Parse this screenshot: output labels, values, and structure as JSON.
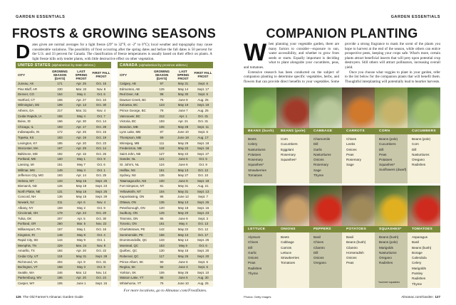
{
  "left": {
    "kicker": "GARDEN ESSENTIALS",
    "title": "FROSTS & GROWING SEASONS",
    "drop_cap": "D",
    "intro": "ates given are normal averages for a light freeze (29° to 32°F, or -2° to 0°C); local weather and topography may cause considerable variations. The possibility of frost occurring after the spring dates and before the fall dates is 50 percent for the U.S. and 33 percent for Canada. The classification of freeze temperatures is usually based on their effect on plants. A light freeze kills only tender plants, with little destructive effect on other vegetation.",
    "headers": [
      "CITY",
      "GROWING SEASON (DAYS)",
      "LAST SPRING FROST",
      "FIRST FALL FROST"
    ],
    "us": {
      "title": "UNITED STATES",
      "subtitle": "(alphabetical by state abbrev.)",
      "rows": [
        [
          "Juneau, AK",
          "171",
          "Apr. 26",
          "Oct. 15"
        ],
        [
          "Pine Bluff, AR",
          "230",
          "Mar. 22",
          "Nov. 8"
        ],
        [
          "Denver, CO",
          "154",
          "May 4",
          "Oct. 6"
        ],
        [
          "Hartford, CT",
          "165",
          "Apr. 27",
          "Oct. 10"
        ],
        [
          "Wilmington, DE",
          "199",
          "Apr. 13",
          "Oct. 30"
        ],
        [
          "Athens, GA",
          "217",
          "Mar. 31",
          "Nov. 4"
        ],
        [
          "Cedar Rapids, IA",
          "155",
          "May 4",
          "Oct. 7"
        ],
        [
          "Boise, ID",
          "166",
          "Apr. 30",
          "Oct. 14"
        ],
        [
          "Chicago, IL",
          "193",
          "Apr. 17",
          "Oct. 28"
        ],
        [
          "Indianapolis, IN",
          "172",
          "Apr. 26",
          "Oct. 16"
        ],
        [
          "Topeka, KS",
          "183",
          "Apr. 19",
          "Oct. 19"
        ],
        [
          "Lexington, KY",
          "185",
          "Apr. 20",
          "Oct. 23"
        ],
        [
          "Worcester, MA",
          "167",
          "Apr. 29",
          "Oct. 14"
        ],
        [
          "Baltimore, MD",
          "192",
          "Apr. 16",
          "Oct. 26"
        ],
        [
          "Portland, ME",
          "160",
          "May 1",
          "Oct. 9"
        ],
        [
          "Lansing, MI",
          "151",
          "May 7",
          "Oct. 6"
        ],
        [
          "Willmar, MN",
          "149",
          "May 4",
          "Oct. 1"
        ],
        [
          "Jefferson City, MO",
          "193",
          "Apr. 14",
          "Oct. 25"
        ],
        [
          "Helena, MT",
          "133",
          "May 15",
          "Sept. 25"
        ],
        [
          "Bismarck, ND",
          "126",
          "May 19",
          "Sept. 23"
        ],
        [
          "North Platte, NE",
          "131",
          "May 16",
          "Sept. 25"
        ],
        [
          "Concord, NH",
          "136",
          "May 15",
          "Sept. 29"
        ],
        [
          "Newark, NJ",
          "211",
          "Apr. 6",
          "Nov. 4"
        ],
        [
          "Albany, NY",
          "159",
          "May 2",
          "Oct. 9"
        ],
        [
          "Cincinnati, OH",
          "179",
          "Apr. 23",
          "Oct. 20"
        ],
        [
          "Tulsa, OK",
          "207",
          "Apr. 5",
          "Oct. 30"
        ],
        [
          "Portland, OR",
          "260",
          "Mar. 6",
          "Nov. 22"
        ],
        [
          "Williamsport, PA",
          "167",
          "May 1",
          "Oct. 16"
        ],
        [
          "Kingston, RI",
          "148",
          "May 8",
          "Oct. 4"
        ],
        [
          "Rapid City, SD",
          "144",
          "May 9",
          "Oct. 1"
        ],
        [
          "Memphis, TN",
          "229",
          "Mar. 24",
          "Nov. 9"
        ],
        [
          "Amarillo, TX",
          "184",
          "Apr. 20",
          "Oct. 22"
        ],
        [
          "Cedar City, UT",
          "119",
          "May 31",
          "Sept. 28"
        ],
        [
          "Richmond, VA",
          "204",
          "Apr. 9",
          "Oct. 31"
        ],
        [
          "Burlington, VT",
          "158",
          "May 3",
          "Oct. 9"
        ],
        [
          "Seattle, WA",
          "246",
          "Mar. 12",
          "Nov. 14"
        ],
        [
          "Parkersburg, WV",
          "186",
          "Apr. 20",
          "Oct. 24"
        ],
        [
          "Casper, WY",
          "105",
          "June 1",
          "Sept. 15"
        ]
      ]
    },
    "canada": {
      "title": "CANADA",
      "subtitle": "(alphabetical by province abbrev.)",
      "rows": [
        [
          "Calgary, AB",
          "97",
          "May 31",
          "Sept. 6"
        ],
        [
          "Edmonton, AB",
          "125",
          "May 14",
          "Sept. 17"
        ],
        [
          "Red Deer, AB",
          "98",
          "May 30",
          "Sept. 6"
        ],
        [
          "Dawson Creek, BC",
          "76",
          "June 9",
          "Aug. 25"
        ],
        [
          "Kelowna, BC",
          "123",
          "May 19",
          "Sept. 19"
        ],
        [
          "Prince George, BC",
          "78",
          "June 7",
          "Aug. 25"
        ],
        [
          "Vancouver, BC",
          "212",
          "Apr. 1",
          "Oct. 31"
        ],
        [
          "Victoria, BC",
          "193",
          "Apr. 21",
          "Oct. 31"
        ],
        [
          "Brandon, MB",
          "105",
          "May 28",
          "Sept. 11"
        ],
        [
          "Lynn Lake, MB",
          "87",
          "June 10",
          "Sept. 6"
        ],
        [
          "Thompson, MB",
          "59",
          "June 18",
          "Aug. 17"
        ],
        [
          "Winnipeg, MB",
          "111",
          "May 29",
          "Sept. 18"
        ],
        [
          "Fredericton, NB",
          "118",
          "May 22",
          "Sept. 18"
        ],
        [
          "Saint John, NB",
          "127",
          "May 22",
          "Sept. 27"
        ],
        [
          "Gander, NL",
          "121",
          "June 6",
          "Oct. 6"
        ],
        [
          "St. John's, NL",
          "124",
          "June 6",
          "Oct. 9"
        ],
        [
          "Halifax, NS",
          "151",
          "May 13",
          "Oct. 12"
        ],
        [
          "Sydney, NS",
          "135",
          "May 27",
          "Oct. 10"
        ],
        [
          "Tatamagouche, NS",
          "100",
          "June 9",
          "Sept. 18"
        ],
        [
          "Fort Simpson, NT",
          "81",
          "May 31",
          "Aug. 21"
        ],
        [
          "Yellowknife, NT",
          "104",
          "May 31",
          "Sept. 13"
        ],
        [
          "Kapuskasing, ON",
          "86",
          "June 12",
          "Sept. 7"
        ],
        [
          "Ottawa, ON",
          "135",
          "May 13",
          "Sept. 26"
        ],
        [
          "Peterborough, ON",
          "120",
          "May 18",
          "Sept. 16"
        ],
        [
          "Sudbury, ON",
          "125",
          "May 20",
          "Sept. 23"
        ],
        [
          "Timmins, ON",
          "85",
          "June 9",
          "Sept. 3"
        ],
        [
          "Toronto, ON",
          "161",
          "May 4",
          "Oct. 13"
        ],
        [
          "Charlottetown, PE",
          "142",
          "May 22",
          "Oct. 12"
        ],
        [
          "Summerside, PE",
          "156",
          "May 13",
          "Oct. 17"
        ],
        [
          "Drummondville, QC",
          "133",
          "May 14",
          "Sept. 25"
        ],
        [
          "Montreal, QC",
          "153",
          "May 6",
          "Oct. 6"
        ],
        [
          "Québec, QC",
          "130",
          "May 15",
          "Sept. 20"
        ],
        [
          "Roberval, QC",
          "117",
          "May 25",
          "Sept. 20"
        ],
        [
          "Prince Albert, SK",
          "90",
          "June 6",
          "Sept. 5"
        ],
        [
          "Regina, SK",
          "94",
          "June 3",
          "Sept. 6"
        ],
        [
          "Yorkton, SK",
          "106",
          "May 26",
          "Sept. 10"
        ],
        [
          "Watson Lake, YT",
          "85",
          "June 5",
          "Aug. 30"
        ],
        [
          "Whitehorse, YT",
          "75",
          "June 10",
          "Aug. 25"
        ]
      ]
    },
    "more": "For more locations, go to Almanac.com/FrostDates.",
    "page_num": "126",
    "footer": "The Old Farmer's Almanac Garden Guide"
  },
  "right": {
    "kicker": "GARDEN ESSENTIALS",
    "title": "COMPANION PLANTING",
    "drop_cap": "W",
    "paragraphs": [
      "hen planning your vegetable garden, there are many factors to consider—exposure to sun, water accessibility, and whether to grow from seeds or starts. Equally important is deciding what to plant alongside your cucumbers, peas, and tomatoes.",
      "Extensive research has been conducted on the subject of companion planting to determine specific vegetables, herbs, and flowers that can provide direct benefits to your vegetables. Some provide a strong fragrance to mask the scent of the plants you hope to harvest at the end of the season, while others can entice prospective pests, keeping your crops safe. What's more, certain plants attract beneficial insects that will prey upon potential crop destroyers. Still others will attract pollinators, increasing overall yield.",
      "Once you choose what veggies to plant in your garden, refer to the list below for the companion plants that will benefit them. Thoughtful interplanting will potentially lead to heartier harvests."
    ],
    "plants": [
      {
        "name": "BEANS (bush)",
        "photo": [
          "#4f7a2c",
          "#8fbf5a"
        ],
        "companions": [
          "Beets",
          "Celery",
          "Nasturtiums",
          "Potatoes",
          "Rosemary",
          "Squashes*",
          "Strawberries",
          "Tomatoes"
        ]
      },
      {
        "name": "BEANS (pole)",
        "photo": [
          "#3d5e25",
          "#a23a2a"
        ],
        "companions": [
          "Corn",
          "Cucumbers",
          "Eggplant",
          "Rosemary",
          "Squashes*"
        ]
      },
      {
        "name": "CABBAGE",
        "photo": [
          "#5b7a3e",
          "#b9c89a"
        ],
        "companions": [
          "Chamomile",
          "Dill",
          "Garlic",
          "Nasturtiums",
          "Onions",
          "Rosemary",
          "Sage",
          "Thyme"
        ]
      },
      {
        "name": "CARROTS",
        "photo": [
          "#4a3a2a",
          "#d0782c"
        ],
        "companions": [
          "Chives",
          "Leeks",
          "Onions",
          "Peas",
          "Rosemary",
          "Sage"
        ]
      },
      {
        "name": "CORN",
        "photo": [
          "#6f8a3a",
          "#c7b46a"
        ],
        "companions": [
          "Beans (pole)",
          "Cucumbers",
          "Dill",
          "Peas",
          "Potatoes",
          "Squashes*",
          "Sunflowers (dwarf)"
        ]
      },
      {
        "name": "CUCUMBERS",
        "photo": [
          "#456b2a",
          "#9fbf6a"
        ],
        "companions": [
          "Beans (pole)",
          "Corn",
          "Dill",
          "Nasturtiums",
          "Oregano",
          "Radishes"
        ]
      },
      {
        "name": "LETTUCE",
        "photo": [
          "#3f6a23",
          "#9ccf5a"
        ],
        "companions": [
          "Alyssum",
          "Chives",
          "Dill",
          "Garlic",
          "Onions",
          "Peas",
          "Radishes",
          "Thyme"
        ]
      },
      {
        "name": "ONIONS",
        "photo": [
          "#3a2a1e",
          "#c9a06a"
        ],
        "companions": [
          "Beets",
          "Cabbage",
          "Carrots",
          "Lettuce",
          "Strawberries",
          "Tomatoes"
        ]
      },
      {
        "name": "PEPPERS",
        "photo": [
          "#2f5a1e",
          "#d02a1a"
        ],
        "companions": [
          "Basil",
          "Chives",
          "Cilantro",
          "Dill",
          "Onions",
          "Oregano"
        ]
      },
      {
        "name": "POTATOES",
        "photo": [
          "#4a3a26",
          "#a08a5a"
        ],
        "companions": [
          "Basil",
          "Beans (bush)",
          "Cilantro",
          "Horseradish",
          "Onions",
          "Peas"
        ]
      },
      {
        "name": "SQUASHES*",
        "photo": [
          "#355e20",
          "#e0b020"
        ],
        "companions": [
          "Beans (bush)",
          "Beans (pole)",
          "Marigolds",
          "Nasturtiums",
          "Oregano",
          "Radishes"
        ],
        "note": "*summer squashes"
      },
      {
        "name": "TOMATOES",
        "photo": [
          "#2e5a1c",
          "#cf2a1e"
        ],
        "companions": [
          "Asparagus",
          "Basil",
          "Beans (bush)",
          "Borage",
          "Calendula",
          "Celery",
          "Marigolds",
          "Parsley",
          "Radishes",
          "Thyme"
        ]
      }
    ],
    "credit": "Photos: Getty Images",
    "footer": "Almanac.com/Garden",
    "page_num": "127"
  },
  "colors": {
    "band": "#7b8a3a",
    "row_dark": "#d5d3b6",
    "row_light": "#f6f2dc"
  }
}
